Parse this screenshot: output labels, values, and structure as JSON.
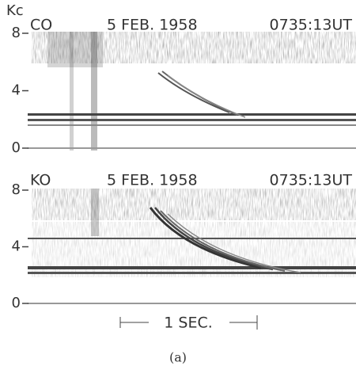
{
  "y_unit": "Kc",
  "panels": [
    {
      "station": "CO",
      "date": "5 FEB. 1958",
      "time": "0735:13UT",
      "yticks": [
        0,
        4,
        8
      ]
    },
    {
      "station": "KO",
      "date": "5 FEB. 1958",
      "time": "0735:13UT",
      "yticks": [
        0,
        4,
        8
      ]
    }
  ],
  "scale_bar": "1 SEC.",
  "caption": "(a)"
}
